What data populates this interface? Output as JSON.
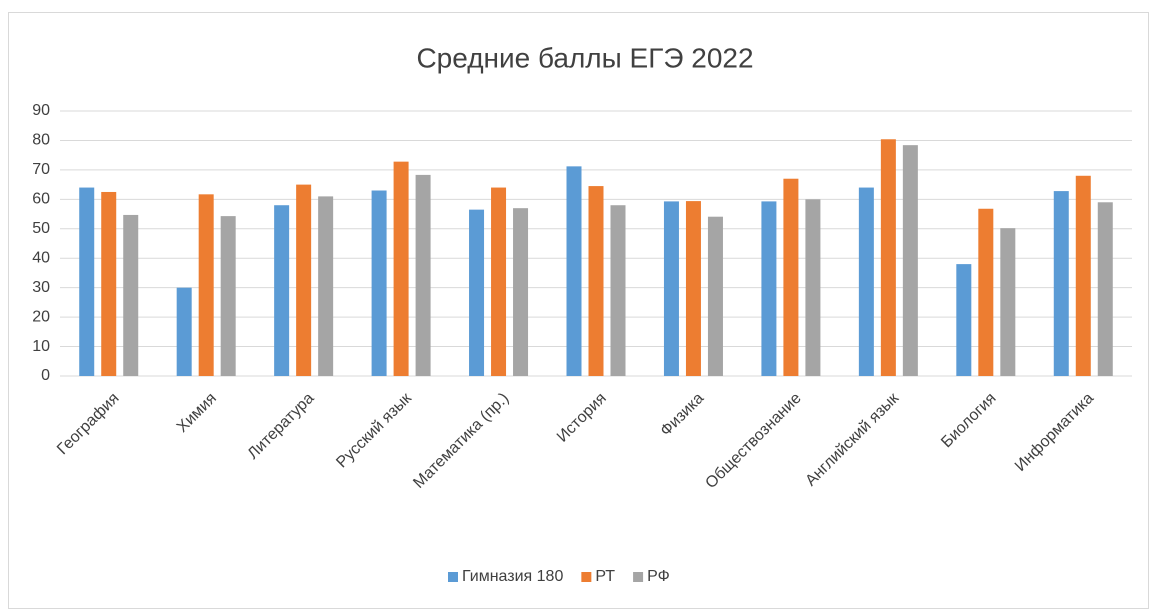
{
  "chart_data": {
    "type": "bar",
    "title": "Средние баллы ЕГЭ 2022",
    "categories": [
      "География",
      "Химия",
      "Литература",
      "Русский язык",
      "Математика (пр.)",
      "История",
      "Физика",
      "Обществознание",
      "Английский язык",
      "Биология",
      "Информатика"
    ],
    "series": [
      {
        "name": "Гимназия 180",
        "color": "#5b9bd5",
        "values": [
          64,
          30,
          58,
          63,
          56.5,
          71.2,
          59.3,
          59.3,
          64,
          38,
          62.8
        ]
      },
      {
        "name": "РТ",
        "color": "#ed7d31",
        "values": [
          62.5,
          61.7,
          65,
          72.8,
          64,
          64.5,
          59.4,
          67,
          80.4,
          56.8,
          68
        ]
      },
      {
        "name": "РФ",
        "color": "#a5a5a5",
        "values": [
          54.7,
          54.3,
          61,
          68.3,
          57,
          58,
          54.1,
          60,
          78.4,
          50.2,
          59
        ]
      }
    ],
    "ylim": [
      0,
      90
    ],
    "yticks": [
      0,
      10,
      20,
      30,
      40,
      50,
      60,
      70,
      80,
      90
    ],
    "grid": true,
    "legend": "bottom"
  }
}
